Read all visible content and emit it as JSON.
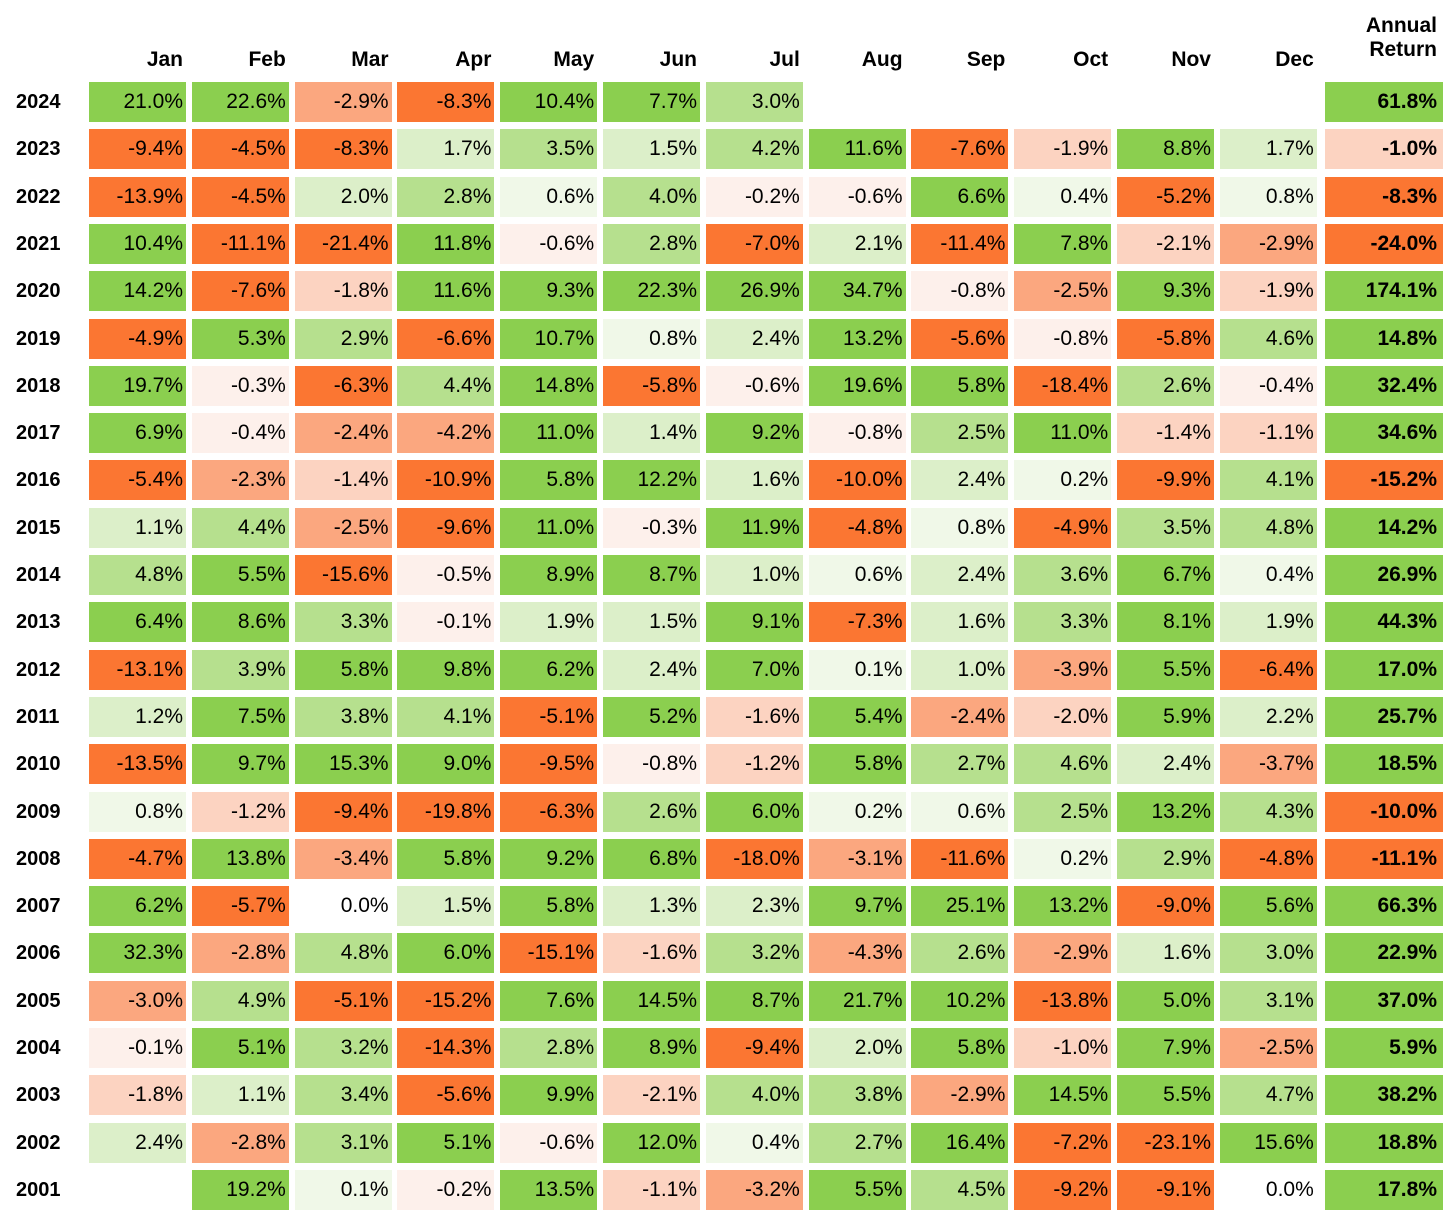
{
  "chart_data": {
    "type": "heatmap",
    "columns": [
      "Jan",
      "Feb",
      "Mar",
      "Apr",
      "May",
      "Jun",
      "Jul",
      "Aug",
      "Sep",
      "Oct",
      "Nov",
      "Dec"
    ],
    "annual_header": "Annual\nReturn",
    "colors": {
      "strong_pos": "#8bcf4f",
      "mid_pos": "#b6e08e",
      "light_pos": "#dcefc9",
      "faint_pos": "#f0f8e8",
      "faint_neg": "#fdf0eb",
      "light_neg": "#fcd3c1",
      "mid_neg": "#fba77f",
      "strong_neg": "#fb7632"
    },
    "rows": [
      {
        "year": "2024",
        "values": [
          "21.0%",
          "22.6%",
          "-2.9%",
          "-8.3%",
          "10.4%",
          "7.7%",
          "3.0%",
          "",
          "",
          "",
          "",
          ""
        ],
        "annual": "61.8%"
      },
      {
        "year": "2023",
        "values": [
          "-9.4%",
          "-4.5%",
          "-8.3%",
          "1.7%",
          "3.5%",
          "1.5%",
          "4.2%",
          "11.6%",
          "-7.6%",
          "-1.9%",
          "8.8%",
          "1.7%"
        ],
        "annual": "-1.0%"
      },
      {
        "year": "2022",
        "values": [
          "-13.9%",
          "-4.5%",
          "2.0%",
          "2.8%",
          "0.6%",
          "4.0%",
          "-0.2%",
          "-0.6%",
          "6.6%",
          "0.4%",
          "-5.2%",
          "0.8%"
        ],
        "annual": "-8.3%"
      },
      {
        "year": "2021",
        "values": [
          "10.4%",
          "-11.1%",
          "-21.4%",
          "11.8%",
          "-0.6%",
          "2.8%",
          "-7.0%",
          "2.1%",
          "-11.4%",
          "7.8%",
          "-2.1%",
          "-2.9%"
        ],
        "annual": "-24.0%"
      },
      {
        "year": "2020",
        "values": [
          "14.2%",
          "-7.6%",
          "-1.8%",
          "11.6%",
          "9.3%",
          "22.3%",
          "26.9%",
          "34.7%",
          "-0.8%",
          "-2.5%",
          "9.3%",
          "-1.9%"
        ],
        "annual": "174.1%"
      },
      {
        "year": "2019",
        "values": [
          "-4.9%",
          "5.3%",
          "2.9%",
          "-6.6%",
          "10.7%",
          "0.8%",
          "2.4%",
          "13.2%",
          "-5.6%",
          "-0.8%",
          "-5.8%",
          "4.6%"
        ],
        "annual": "14.8%"
      },
      {
        "year": "2018",
        "values": [
          "19.7%",
          "-0.3%",
          "-6.3%",
          "4.4%",
          "14.8%",
          "-5.8%",
          "-0.6%",
          "19.6%",
          "5.8%",
          "-18.4%",
          "2.6%",
          "-0.4%"
        ],
        "annual": "32.4%"
      },
      {
        "year": "2017",
        "values": [
          "6.9%",
          "-0.4%",
          "-2.4%",
          "-4.2%",
          "11.0%",
          "1.4%",
          "9.2%",
          "-0.8%",
          "2.5%",
          "11.0%",
          "-1.4%",
          "-1.1%"
        ],
        "annual": "34.6%"
      },
      {
        "year": "2016",
        "values": [
          "-5.4%",
          "-2.3%",
          "-1.4%",
          "-10.9%",
          "5.8%",
          "12.2%",
          "1.6%",
          "-10.0%",
          "2.4%",
          "0.2%",
          "-9.9%",
          "4.1%"
        ],
        "annual": "-15.2%"
      },
      {
        "year": "2015",
        "values": [
          "1.1%",
          "4.4%",
          "-2.5%",
          "-9.6%",
          "11.0%",
          "-0.3%",
          "11.9%",
          "-4.8%",
          "0.8%",
          "-4.9%",
          "3.5%",
          "4.8%"
        ],
        "annual": "14.2%"
      },
      {
        "year": "2014",
        "values": [
          "4.8%",
          "5.5%",
          "-15.6%",
          "-0.5%",
          "8.9%",
          "8.7%",
          "1.0%",
          "0.6%",
          "2.4%",
          "3.6%",
          "6.7%",
          "0.4%"
        ],
        "annual": "26.9%"
      },
      {
        "year": "2013",
        "values": [
          "6.4%",
          "8.6%",
          "3.3%",
          "-0.1%",
          "1.9%",
          "1.5%",
          "9.1%",
          "-7.3%",
          "1.6%",
          "3.3%",
          "8.1%",
          "1.9%"
        ],
        "annual": "44.3%"
      },
      {
        "year": "2012",
        "values": [
          "-13.1%",
          "3.9%",
          "5.8%",
          "9.8%",
          "6.2%",
          "2.4%",
          "7.0%",
          "0.1%",
          "1.0%",
          "-3.9%",
          "5.5%",
          "-6.4%"
        ],
        "annual": "17.0%"
      },
      {
        "year": "2011",
        "values": [
          "1.2%",
          "7.5%",
          "3.8%",
          "4.1%",
          "-5.1%",
          "5.2%",
          "-1.6%",
          "5.4%",
          "-2.4%",
          "-2.0%",
          "5.9%",
          "2.2%"
        ],
        "annual": "25.7%"
      },
      {
        "year": "2010",
        "values": [
          "-13.5%",
          "9.7%",
          "15.3%",
          "9.0%",
          "-9.5%",
          "-0.8%",
          "-1.2%",
          "5.8%",
          "2.7%",
          "4.6%",
          "2.4%",
          "-3.7%"
        ],
        "annual": "18.5%"
      },
      {
        "year": "2009",
        "values": [
          "0.8%",
          "-1.2%",
          "-9.4%",
          "-19.8%",
          "-6.3%",
          "2.6%",
          "6.0%",
          "0.2%",
          "0.6%",
          "2.5%",
          "13.2%",
          "4.3%"
        ],
        "annual": "-10.0%"
      },
      {
        "year": "2008",
        "values": [
          "-4.7%",
          "13.8%",
          "-3.4%",
          "5.8%",
          "9.2%",
          "6.8%",
          "-18.0%",
          "-3.1%",
          "-11.6%",
          "0.2%",
          "2.9%",
          "-4.8%"
        ],
        "annual": "-11.1%"
      },
      {
        "year": "2007",
        "values": [
          "6.2%",
          "-5.7%",
          "0.0%",
          "1.5%",
          "5.8%",
          "1.3%",
          "2.3%",
          "9.7%",
          "25.1%",
          "13.2%",
          "-9.0%",
          "5.6%"
        ],
        "annual": "66.3%"
      },
      {
        "year": "2006",
        "values": [
          "32.3%",
          "-2.8%",
          "4.8%",
          "6.0%",
          "-15.1%",
          "-1.6%",
          "3.2%",
          "-4.3%",
          "2.6%",
          "-2.9%",
          "1.6%",
          "3.0%"
        ],
        "annual": "22.9%"
      },
      {
        "year": "2005",
        "values": [
          "-3.0%",
          "4.9%",
          "-5.1%",
          "-15.2%",
          "7.6%",
          "14.5%",
          "8.7%",
          "21.7%",
          "10.2%",
          "-13.8%",
          "5.0%",
          "3.1%"
        ],
        "annual": "37.0%"
      },
      {
        "year": "2004",
        "values": [
          "-0.1%",
          "5.1%",
          "3.2%",
          "-14.3%",
          "2.8%",
          "8.9%",
          "-9.4%",
          "2.0%",
          "5.8%",
          "-1.0%",
          "7.9%",
          "-2.5%"
        ],
        "annual": "5.9%"
      },
      {
        "year": "2003",
        "values": [
          "-1.8%",
          "1.1%",
          "3.4%",
          "-5.6%",
          "9.9%",
          "-2.1%",
          "4.0%",
          "3.8%",
          "-2.9%",
          "14.5%",
          "5.5%",
          "4.7%"
        ],
        "annual": "38.2%"
      },
      {
        "year": "2002",
        "values": [
          "2.4%",
          "-2.8%",
          "3.1%",
          "5.1%",
          "-0.6%",
          "12.0%",
          "0.4%",
          "2.7%",
          "16.4%",
          "-7.2%",
          "-23.1%",
          "15.6%"
        ],
        "annual": "18.8%"
      },
      {
        "year": "2001",
        "values": [
          "",
          "19.2%",
          "0.1%",
          "-0.2%",
          "13.5%",
          "-1.1%",
          "-3.2%",
          "5.5%",
          "4.5%",
          "-9.2%",
          "-9.1%",
          "0.0%"
        ],
        "annual": "17.8%"
      }
    ]
  }
}
